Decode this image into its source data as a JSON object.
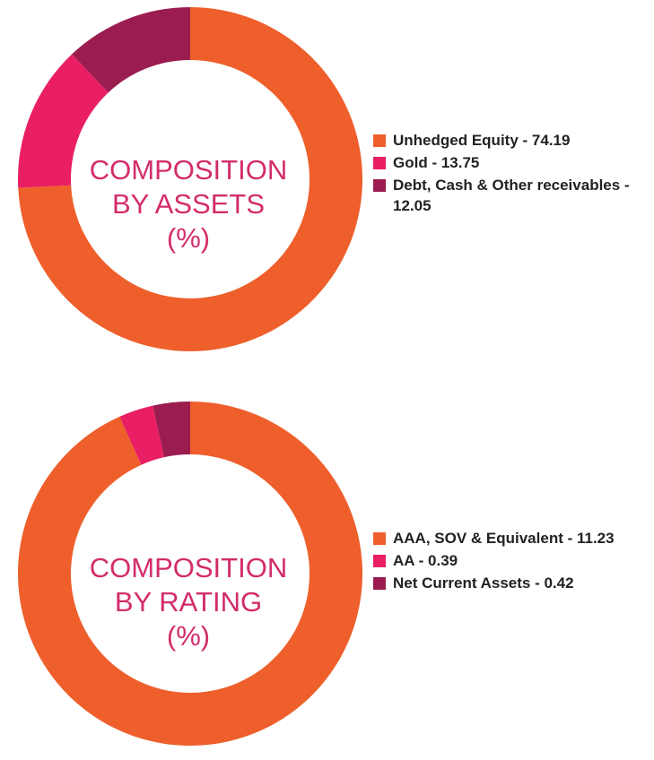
{
  "chart_data": [
    {
      "type": "pie",
      "donut": true,
      "title_lines": [
        "COMPOSITION",
        "BY ASSETS",
        "(%)"
      ],
      "series": [
        {
          "label": "Unhedged Equity - 74.19",
          "value": 74.19,
          "color": "#ee5f2c"
        },
        {
          "label": "Gold - 13.75",
          "value": 13.75,
          "color": "#e91e63"
        },
        {
          "label": "Debt, Cash & Other receivables - 12.05",
          "value": 12.05,
          "color": "#9b1c4f"
        }
      ]
    },
    {
      "type": "pie",
      "donut": true,
      "title_lines": [
        "COMPOSITION",
        "BY RATING",
        "(%)"
      ],
      "series": [
        {
          "label": "AAA, SOV & Equivalent - 11.23",
          "value": 11.23,
          "color": "#ee5f2c"
        },
        {
          "label": "AA - 0.39",
          "value": 0.39,
          "color": "#e91e63"
        },
        {
          "label": "Net Current Assets - 0.42",
          "value": 0.42,
          "color": "#9b1c4f"
        }
      ]
    }
  ]
}
